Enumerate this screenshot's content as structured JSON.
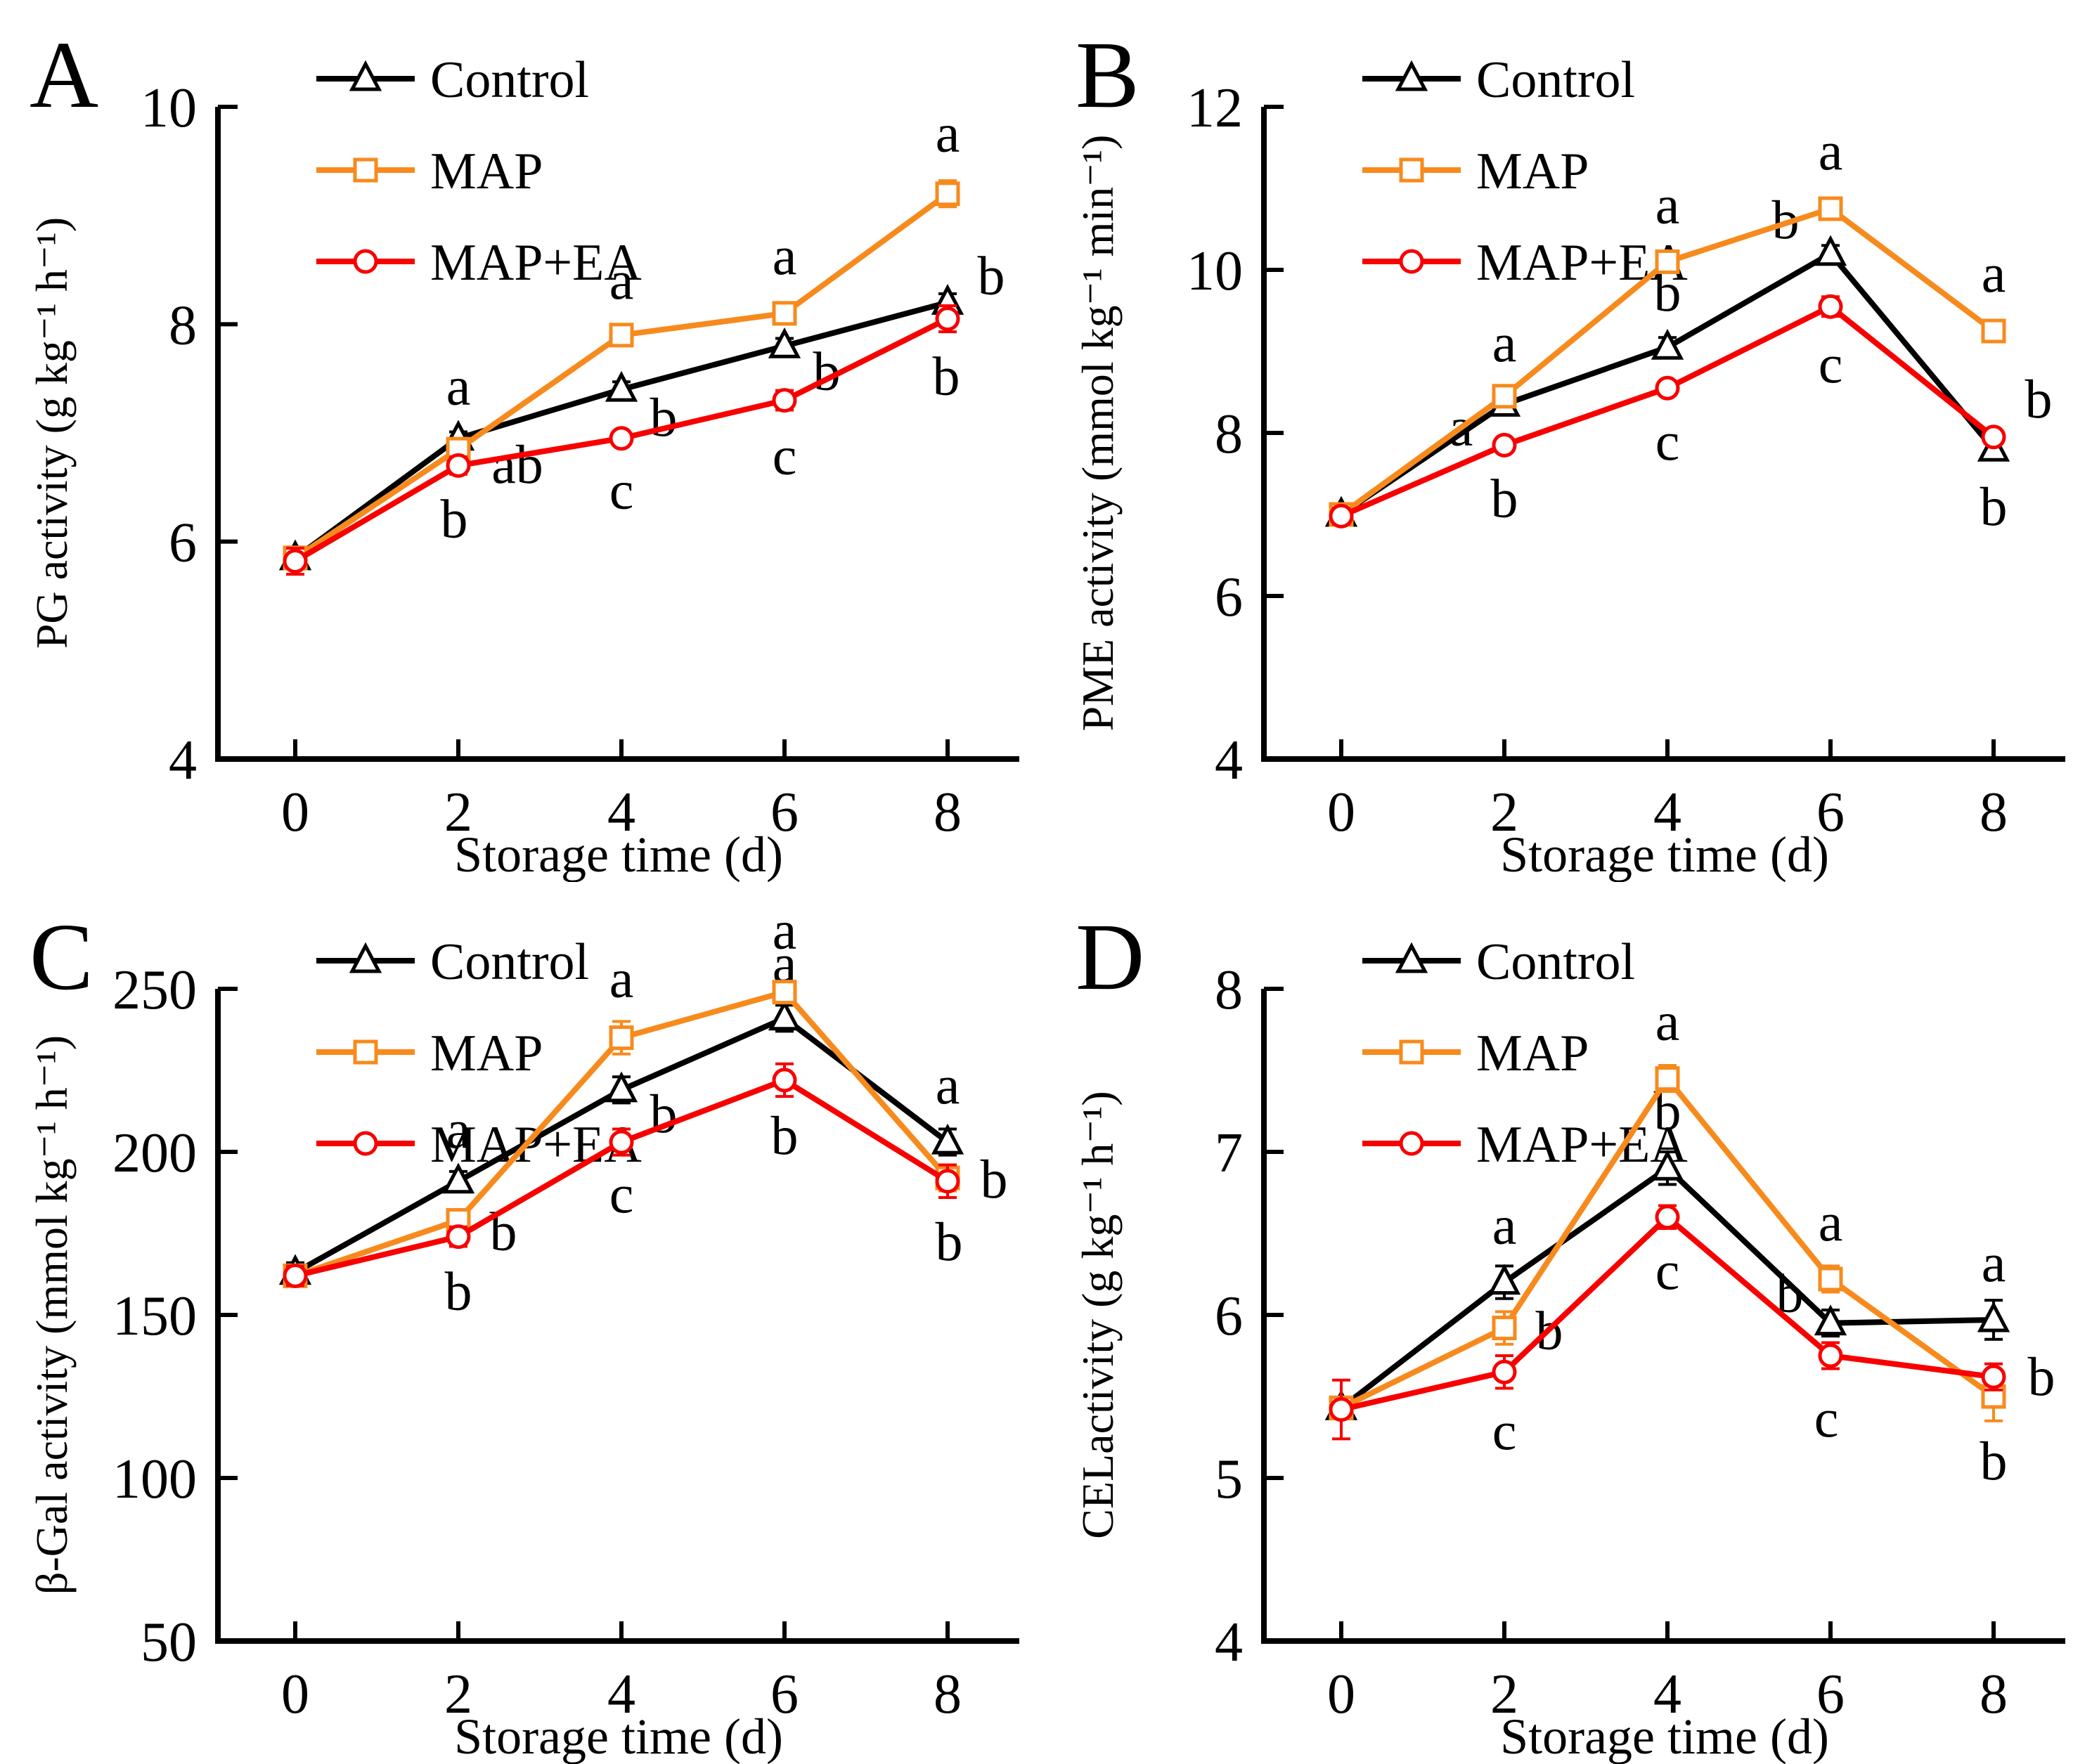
{
  "figure": {
    "background": "#ffffff",
    "series_colors": {
      "control": "#000000",
      "map": "#F78A1D",
      "map_ea": "#F80000"
    },
    "legend_labels": [
      "Control",
      "MAP",
      "MAP+EA"
    ],
    "marker_shapes": {
      "control": "triangle-open",
      "map": "square-open",
      "map_ea": "circle-open"
    }
  },
  "chart_data": [
    {
      "id": "a",
      "label": "A",
      "type": "line",
      "xlabel": "Storage time (d)",
      "ylabel": "PG activity (g kg⁻¹ h⁻¹)",
      "x": [
        0,
        2,
        4,
        6,
        8
      ],
      "xticks": [
        "0",
        "2",
        "4",
        "6",
        "8"
      ],
      "ylim": [
        4,
        10
      ],
      "yticks": [
        4,
        6,
        8,
        10
      ],
      "grid": false,
      "legend_position": "top-left",
      "series": [
        {
          "name": "Control",
          "color": "#000000",
          "marker": "triangle",
          "values": [
            5.85,
            6.95,
            7.4,
            7.8,
            8.2
          ],
          "errors": [
            0.1,
            0.06,
            0.07,
            0.07,
            0.08
          ],
          "letters": [
            {
              "text": "",
              "dx": 0,
              "dy": 0
            },
            {
              "text": "a",
              "dx": 0,
              "dy": -48
            },
            {
              "text": "b",
              "dx": 60,
              "dy": 66
            },
            {
              "text": "b",
              "dx": 60,
              "dy": 62
            },
            {
              "text": "b",
              "dx": 62,
              "dy": -12
            }
          ]
        },
        {
          "name": "MAP",
          "color": "#F78A1D",
          "marker": "square",
          "values": [
            5.85,
            6.85,
            7.9,
            8.1,
            9.2
          ],
          "errors": [
            0.08,
            0.1,
            0.08,
            0.07,
            0.12
          ],
          "letters": [
            {
              "text": "",
              "dx": 0,
              "dy": 0
            },
            {
              "text": "ab",
              "dx": 84,
              "dy": 48
            },
            {
              "text": "a",
              "dx": 0,
              "dy": -52
            },
            {
              "text": "a",
              "dx": 0,
              "dy": -56
            },
            {
              "text": "a",
              "dx": 0,
              "dy": -60
            }
          ]
        },
        {
          "name": "MAP+EA",
          "color": "#F80000",
          "marker": "circle",
          "values": [
            5.82,
            6.7,
            6.95,
            7.3,
            8.05
          ],
          "errors": [
            0.12,
            0.08,
            0.06,
            0.09,
            0.12
          ],
          "letters": [
            {
              "text": "",
              "dx": 0,
              "dy": 0
            },
            {
              "text": "b",
              "dx": -6,
              "dy": 102
            },
            {
              "text": "c",
              "dx": 0,
              "dy": 100
            },
            {
              "text": "c",
              "dx": 0,
              "dy": 105
            },
            {
              "text": "b",
              "dx": -2,
              "dy": 108
            }
          ]
        }
      ]
    },
    {
      "id": "b",
      "label": "B",
      "type": "line",
      "xlabel": "Storage time (d)",
      "ylabel": "PME activity (mmol kg⁻¹ min⁻¹)",
      "x": [
        0,
        2,
        4,
        6,
        8
      ],
      "xticks": [
        "0",
        "2",
        "4",
        "6",
        "8"
      ],
      "ylim": [
        4,
        12
      ],
      "yticks": [
        4,
        6,
        8,
        10,
        12
      ],
      "grid": false,
      "legend_position": "top-left",
      "series": [
        {
          "name": "Control",
          "color": "#000000",
          "marker": "triangle",
          "values": [
            7.0,
            8.35,
            9.05,
            10.2,
            7.8
          ],
          "errors": [
            0.08,
            0.1,
            0.12,
            0.1,
            0.08
          ],
          "letters": [
            {
              "text": "",
              "dx": 0,
              "dy": 0
            },
            {
              "text": "a",
              "dx": -62,
              "dy": 58
            },
            {
              "text": "b",
              "dx": 0,
              "dy": -52
            },
            {
              "text": "b",
              "dx": -64,
              "dy": -22
            },
            {
              "text": "b",
              "dx": 0,
              "dy": 108
            }
          ]
        },
        {
          "name": "MAP",
          "color": "#F78A1D",
          "marker": "square",
          "values": [
            7.0,
            8.45,
            10.1,
            10.75,
            9.25
          ],
          "errors": [
            0.06,
            0.08,
            0.1,
            0.08,
            0.1
          ],
          "letters": [
            {
              "text": "",
              "dx": 0,
              "dy": 0
            },
            {
              "text": "a",
              "dx": 0,
              "dy": -50
            },
            {
              "text": "a",
              "dx": 0,
              "dy": -55
            },
            {
              "text": "a",
              "dx": 0,
              "dy": -56
            },
            {
              "text": "a",
              "dx": 0,
              "dy": -56
            }
          ]
        },
        {
          "name": "MAP+EA",
          "color": "#F80000",
          "marker": "circle",
          "values": [
            6.98,
            7.85,
            8.55,
            9.55,
            7.95
          ],
          "errors": [
            0.1,
            0.08,
            0.08,
            0.12,
            0.08
          ],
          "letters": [
            {
              "text": "",
              "dx": 0,
              "dy": 0
            },
            {
              "text": "b",
              "dx": 0,
              "dy": 102
            },
            {
              "text": "c",
              "dx": 0,
              "dy": 102
            },
            {
              "text": "c",
              "dx": 0,
              "dy": 108
            },
            {
              "text": "b",
              "dx": 64,
              "dy": -28
            }
          ]
        }
      ]
    },
    {
      "id": "c",
      "label": "C",
      "type": "line",
      "xlabel": "Storage time (d)",
      "ylabel": "β-Gal activity (mmol kg⁻¹ h⁻¹)",
      "x": [
        0,
        2,
        4,
        6,
        8
      ],
      "xticks": [
        "0",
        "2",
        "4",
        "6",
        "8"
      ],
      "ylim": [
        50,
        250
      ],
      "yticks": [
        50,
        100,
        150,
        200,
        250
      ],
      "grid": false,
      "legend_position": "top-left",
      "series": [
        {
          "name": "Control",
          "color": "#000000",
          "marker": "triangle",
          "values": [
            163,
            191,
            219,
            241,
            203
          ],
          "errors": [
            3,
            3,
            4,
            4,
            4
          ],
          "letters": [
            {
              "text": "",
              "dx": 0,
              "dy": 0
            },
            {
              "text": "a",
              "dx": 0,
              "dy": -48
            },
            {
              "text": "b",
              "dx": 60,
              "dy": 60
            },
            {
              "text": "a",
              "dx": 0,
              "dy": -52
            },
            {
              "text": "a",
              "dx": 0,
              "dy": -55
            }
          ]
        },
        {
          "name": "MAP",
          "color": "#F78A1D",
          "marker": "square",
          "values": [
            162,
            179,
            235,
            249,
            192
          ],
          "errors": [
            3,
            3,
            5,
            3,
            4
          ],
          "letters": [
            {
              "text": "",
              "dx": 0,
              "dy": 0
            },
            {
              "text": "b",
              "dx": 64,
              "dy": 42
            },
            {
              "text": "a",
              "dx": 0,
              "dy": -58
            },
            {
              "text": "a",
              "dx": 0,
              "dy": -62
            },
            {
              "text": "b",
              "dx": 66,
              "dy": 28
            }
          ]
        },
        {
          "name": "MAP+EA",
          "color": "#F80000",
          "marker": "circle",
          "values": [
            162,
            174,
            203,
            222,
            191
          ],
          "errors": [
            3,
            3,
            4,
            5,
            5
          ],
          "letters": [
            {
              "text": "",
              "dx": 0,
              "dy": 0
            },
            {
              "text": "b",
              "dx": 0,
              "dy": 104
            },
            {
              "text": "c",
              "dx": 0,
              "dy": 100
            },
            {
              "text": "b",
              "dx": 0,
              "dy": 105
            },
            {
              "text": "b",
              "dx": 2,
              "dy": 112
            }
          ]
        }
      ]
    },
    {
      "id": "d",
      "label": "D",
      "type": "line",
      "xlabel": "Storage time (d)",
      "ylabel": "CELactivity (g kg⁻¹ h⁻¹)",
      "x": [
        0,
        2,
        4,
        6,
        8
      ],
      "xticks": [
        "0",
        "2",
        "4",
        "6",
        "8"
      ],
      "ylim": [
        4,
        8
      ],
      "yticks": [
        4,
        5,
        6,
        7,
        8
      ],
      "grid": false,
      "legend_position": "top-left",
      "series": [
        {
          "name": "Control",
          "color": "#000000",
          "marker": "triangle",
          "values": [
            5.43,
            6.2,
            6.9,
            5.95,
            5.97
          ],
          "errors": [
            0.06,
            0.1,
            0.1,
            0.08,
            0.12
          ],
          "letters": [
            {
              "text": "",
              "dx": 0,
              "dy": 0
            },
            {
              "text": "a",
              "dx": 0,
              "dy": -55
            },
            {
              "text": "b",
              "dx": 0,
              "dy": -55
            },
            {
              "text": "b",
              "dx": -58,
              "dy": -16
            },
            {
              "text": "a",
              "dx": 0,
              "dy": -55
            }
          ]
        },
        {
          "name": "MAP",
          "color": "#F78A1D",
          "marker": "square",
          "values": [
            5.43,
            5.92,
            7.45,
            6.22,
            5.5
          ],
          "errors": [
            0.06,
            0.1,
            0.08,
            0.08,
            0.15
          ],
          "letters": [
            {
              "text": "",
              "dx": 0,
              "dy": 0
            },
            {
              "text": "b",
              "dx": 64,
              "dy": 30
            },
            {
              "text": "a",
              "dx": 0,
              "dy": -55
            },
            {
              "text": "a",
              "dx": 0,
              "dy": -55
            },
            {
              "text": "b",
              "dx": 0,
              "dy": 118
            }
          ]
        },
        {
          "name": "MAP+EA",
          "color": "#F80000",
          "marker": "circle",
          "values": [
            5.42,
            5.65,
            6.6,
            5.75,
            5.62
          ],
          "errors": [
            0.18,
            0.1,
            0.07,
            0.08,
            0.08
          ],
          "letters": [
            {
              "text": "",
              "dx": 0,
              "dy": 0
            },
            {
              "text": "c",
              "dx": 0,
              "dy": 110
            },
            {
              "text": "c",
              "dx": 0,
              "dy": 102
            },
            {
              "text": "c",
              "dx": -6,
              "dy": 115
            },
            {
              "text": "b",
              "dx": 68,
              "dy": 26
            }
          ]
        }
      ]
    }
  ]
}
